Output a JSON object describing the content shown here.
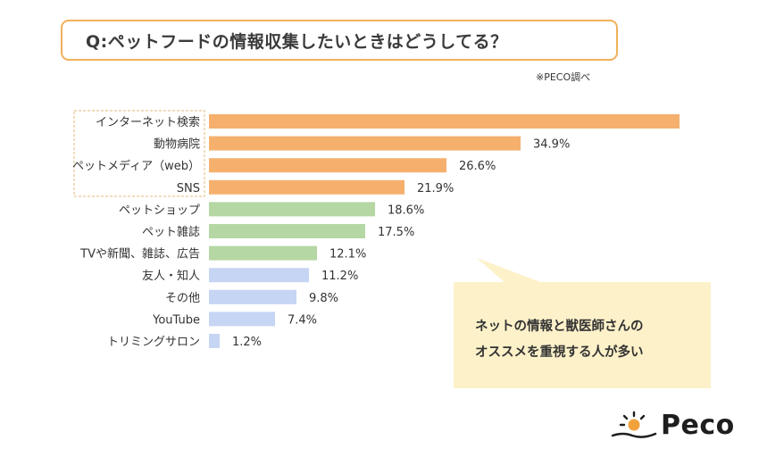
{
  "title": "Q:ペットフードの情報収集したいときはどうしてる？",
  "source_note": "※PECO調べ",
  "callout": {
    "line1": "ネットの情報と獣医師さんの",
    "line2": "オススメを重視する人が多い"
  },
  "logo": {
    "text": "Peco",
    "icon": "peco-face-icon"
  },
  "colors": {
    "orange": "#f5b06e",
    "green": "#b5d7a4",
    "blue": "#c6d5f3",
    "title_border": "#f0b05a",
    "callout_bg": "#fdf1c9",
    "highlight_border": "#e3b878"
  },
  "chart_data": {
    "type": "bar",
    "orientation": "horizontal",
    "categories": [
      "インターネット検索",
      "動物病院",
      "ペットメディア（web）",
      "SNS",
      "ペットショップ",
      "ペット雑誌",
      "TVや新聞、雑誌、広告",
      "友人・知人",
      "その他",
      "YouTube",
      "トリミングサロン"
    ],
    "values": [
      52.7,
      34.9,
      26.6,
      21.9,
      18.6,
      17.5,
      12.1,
      11.2,
      9.8,
      7.4,
      1.2
    ],
    "labels": [
      "",
      "34.9%",
      "26.6%",
      "21.9%",
      "18.6%",
      "17.5%",
      "12.1%",
      "11.2%",
      "9.8%",
      "7.4%",
      "1.2%"
    ],
    "color_groups": [
      "orange",
      "orange",
      "orange",
      "orange",
      "green",
      "green",
      "green",
      "blue",
      "blue",
      "blue",
      "blue"
    ],
    "highlighted_categories": [
      "インターネット検索",
      "動物病院",
      "ペットメディア（web）",
      "SNS"
    ],
    "unit": "%",
    "xlim": [
      0,
      60
    ],
    "title": "",
    "xlabel": "",
    "ylabel": ""
  }
}
